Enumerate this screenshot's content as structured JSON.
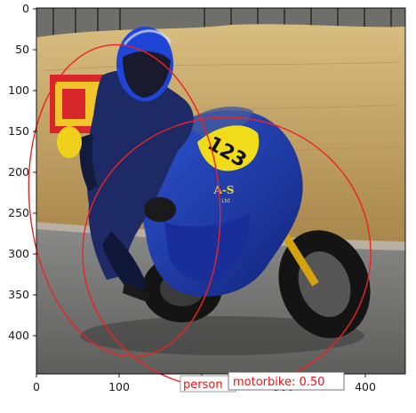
{
  "axes": {
    "x_ticks": [
      "0",
      "100",
      "200",
      "300",
      "400"
    ],
    "y_ticks": [
      "0",
      "50",
      "100",
      "150",
      "200",
      "250",
      "300",
      "350",
      "400"
    ],
    "x_range": [
      0,
      452
    ],
    "y_range": [
      0,
      452
    ]
  },
  "photo": {
    "subject": "motorcycle racer leaning into a turn on a blue sport bike",
    "race_number": "123",
    "fairing_logo": "A-S",
    "fairing_logo_sub": "Ltd",
    "colors": {
      "bike_blue": "#1f3fb8",
      "number_plate_yellow": "#f1dc1a",
      "hay_bales": "#c9a765",
      "track": "#7f7f7f",
      "grass_edge": "#b8b0a0"
    }
  },
  "detections": [
    {
      "label": "person",
      "ellipse_center": [
        140,
        226
      ],
      "ellipse_radii": [
        107,
        176
      ]
    },
    {
      "label": "motorbike: 0.50",
      "ellipse_center": [
        255,
        285
      ],
      "ellipse_radii": [
        162,
        153
      ]
    }
  ],
  "annotation_color": "#ee2222"
}
